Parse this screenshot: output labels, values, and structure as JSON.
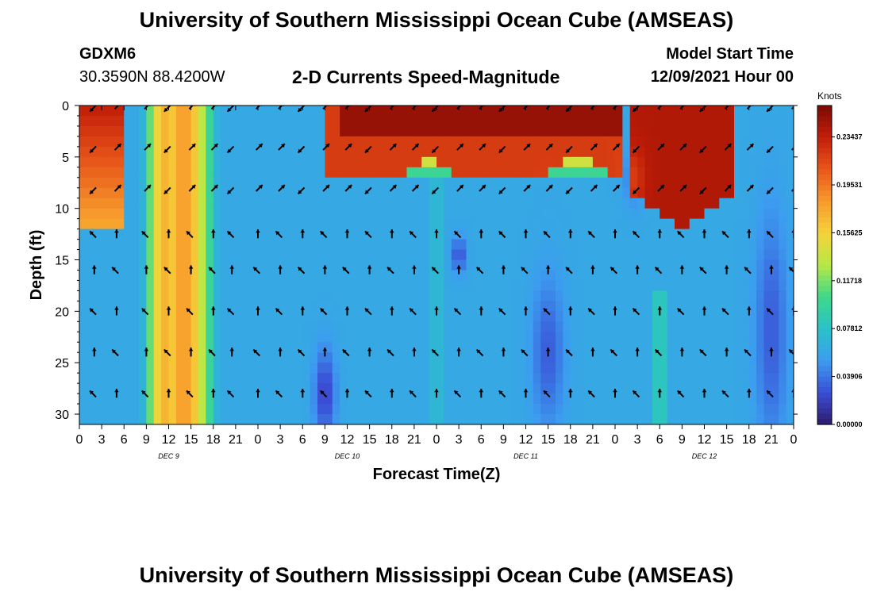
{
  "header": {
    "title": "University of Southern Mississippi Ocean Cube (AMSEAS)",
    "station": "GDXM6",
    "location": "30.3590N  88.4200W",
    "plot_title": "2-D Currents Speed-Magnitude",
    "model_start_label": "Model Start Time",
    "model_start_value": "12/09/2021 Hour 00"
  },
  "footer": {
    "title": "University of Southern Mississippi Ocean Cube (AMSEAS)"
  },
  "colors": {
    "background": "#ffffff",
    "arrow": "#000000"
  },
  "chart_data": {
    "type": "heatmap",
    "title": "2-D Currents Speed-Magnitude",
    "xlabel": "Forecast Time(Z)",
    "ylabel": "Depth (ft)",
    "x_tick_labels": [
      "0",
      "3",
      "6",
      "9",
      "12",
      "15",
      "18",
      "21",
      "0",
      "3",
      "6",
      "9",
      "12",
      "15",
      "18",
      "21",
      "0",
      "3",
      "6",
      "9",
      "12",
      "15",
      "18",
      "21",
      "0",
      "3",
      "6",
      "9",
      "12",
      "15",
      "18",
      "21",
      "0"
    ],
    "x_range_hours": [
      0,
      96
    ],
    "y_range_ft": [
      0,
      31
    ],
    "y_ticks": [
      0,
      5,
      10,
      15,
      20,
      25,
      30
    ],
    "y_tick_labels": [
      "0",
      "5",
      "10",
      "15",
      "20",
      "25",
      "30"
    ],
    "day_labels": [
      {
        "label": "DEC 9",
        "hour": 12
      },
      {
        "label": "DEC 10",
        "hour": 36
      },
      {
        "label": "DEC 11",
        "hour": 60
      },
      {
        "label": "DEC 12",
        "hour": 84
      }
    ],
    "colorbar": {
      "unit": "Knots",
      "ticks": [
        "0.00000",
        "0.03906",
        "0.07812",
        "0.11718",
        "0.15625",
        "0.19531",
        "0.23437"
      ],
      "tick_values": [
        0.0,
        0.03906,
        0.07812,
        0.11718,
        0.15625,
        0.19531,
        0.23437
      ],
      "range": [
        0.0,
        0.26
      ],
      "colormap": [
        "#2e1a6e",
        "#3a4fd6",
        "#3c9cf0",
        "#29c2c8",
        "#3fd88a",
        "#b8e845",
        "#f5d23a",
        "#f79a2c",
        "#e8561a",
        "#c21e08",
        "#7a0a04"
      ]
    },
    "speed_field_description_hours": [
      {
        "hours": [
          0,
          6
        ],
        "depth_top_ft": 0,
        "depth_bottom_ft": 12,
        "speed": 0.23
      },
      {
        "hours": [
          9,
          20
        ],
        "depth_top_ft": 0,
        "depth_bottom_ft": 31,
        "speed": 0.17
      },
      {
        "hours": [
          33,
          72
        ],
        "depth_top_ft": 0,
        "depth_bottom_ft": 8,
        "speed": 0.22
      },
      {
        "hours": [
          74,
          87
        ],
        "depth_top_ft": 0,
        "depth_bottom_ft": 12,
        "speed": 0.24
      }
    ],
    "arrow_depths_ft": [
      0,
      4,
      8,
      12.5,
      16,
      20,
      24,
      28
    ],
    "arrow_hours": [
      2,
      5,
      9,
      12,
      15,
      18,
      20.5,
      24,
      27,
      30,
      33,
      36,
      39,
      42,
      45,
      48,
      51,
      54,
      57,
      60,
      63,
      66,
      69,
      72,
      75,
      78,
      81,
      84,
      87,
      90,
      93,
      96
    ]
  }
}
